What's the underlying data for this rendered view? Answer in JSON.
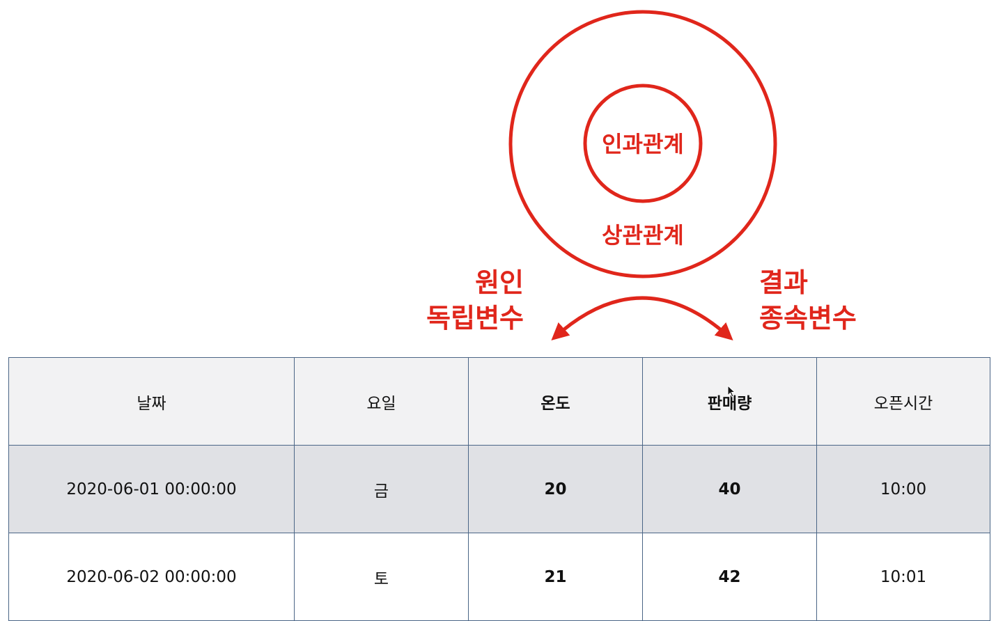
{
  "diagram": {
    "inner_label": "인과관계",
    "outer_label": "상관관계",
    "cause": {
      "line1": "원인",
      "line2": "독립변수"
    },
    "effect": {
      "line1": "결과",
      "line2": "종속변수"
    },
    "accent_color": "#e0261b"
  },
  "table": {
    "headers": [
      "날짜",
      "요일",
      "온도",
      "판매량",
      "오픈시간"
    ],
    "bold_columns": [
      2,
      3
    ],
    "rows": [
      [
        "2020-06-01 00:00:00",
        "금",
        "20",
        "40",
        "10:00"
      ],
      [
        "2020-06-02 00:00:00",
        "토",
        "21",
        "42",
        "10:01"
      ]
    ],
    "border_color": "#4a6586"
  }
}
